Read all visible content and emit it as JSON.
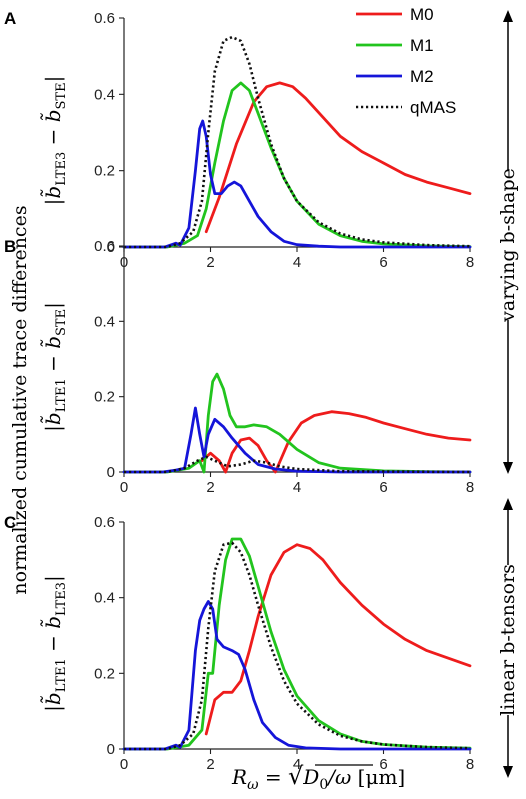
{
  "figure": {
    "shared_ylabel": "normalized cumulative trace differences",
    "shared_xlabel": "Rω = √(D0/ω) [μm]",
    "xlabel_parts": {
      "lhs_main": "R",
      "lhs_sub": "ω",
      "eq": " = ",
      "root": "√",
      "num_main": "D",
      "num_sub": "0",
      "slash": "/ω",
      "unit": " [μm]"
    },
    "side_annotations": [
      {
        "text": "varying b-shape",
        "arrow": "double-headed",
        "spans": [
          "A",
          "B"
        ]
      },
      {
        "text": "linear b-tensors",
        "arrow": "double-headed",
        "spans": [
          "C"
        ]
      }
    ]
  },
  "legend": {
    "placement": "top-right",
    "entries": [
      {
        "label": "M0",
        "color": "#ee1c1c",
        "style": "solid"
      },
      {
        "label": "M1",
        "color": "#22c41e",
        "style": "solid"
      },
      {
        "label": "M2",
        "color": "#1515d9",
        "style": "solid"
      },
      {
        "label": "qMAS",
        "color": "#111111",
        "style": "dotted"
      }
    ]
  },
  "chart_data": [
    {
      "panel": "A",
      "type": "line",
      "ylabel": "|b̃LTE3 − b̃STE|",
      "ylabel_parts": {
        "a_sub": "LTE3",
        "b_sub": "STE"
      },
      "xlim": [
        0,
        8
      ],
      "ylim": [
        0,
        0.6
      ],
      "xticks": [
        "0",
        "2",
        "4",
        "6",
        "8"
      ],
      "yticks": [
        "0",
        "0.2",
        "0.4",
        "0.6"
      ],
      "series": [
        {
          "name": "M0",
          "color": "#ee1c1c",
          "dash": "solid",
          "x": [
            1.9,
            2.2,
            2.6,
            3.0,
            3.3,
            3.6,
            3.9,
            4.2,
            4.6,
            5.0,
            5.5,
            6.0,
            6.5,
            7.0,
            7.5,
            8.0
          ],
          "y": [
            0.04,
            0.13,
            0.27,
            0.38,
            0.42,
            0.43,
            0.42,
            0.39,
            0.34,
            0.29,
            0.25,
            0.22,
            0.19,
            0.17,
            0.155,
            0.14
          ]
        },
        {
          "name": "M1",
          "color": "#22c41e",
          "dash": "solid",
          "x": [
            0,
            1.0,
            1.4,
            1.7,
            1.9,
            2.1,
            2.3,
            2.5,
            2.7,
            2.9,
            3.1,
            3.4,
            3.7,
            4.0,
            4.5,
            5.0,
            5.5,
            6.0,
            7.0,
            8.0
          ],
          "y": [
            0,
            0,
            0.01,
            0.03,
            0.1,
            0.22,
            0.33,
            0.41,
            0.43,
            0.41,
            0.35,
            0.26,
            0.18,
            0.12,
            0.06,
            0.03,
            0.015,
            0.008,
            0.003,
            0.001
          ]
        },
        {
          "name": "M2",
          "color": "#1515d9",
          "dash": "solid",
          "x": [
            0,
            0.95,
            1.2,
            1.3,
            1.5,
            1.65,
            1.75,
            1.82,
            1.9,
            2.0,
            2.1,
            2.25,
            2.4,
            2.55,
            2.7,
            2.9,
            3.1,
            3.4,
            3.7,
            4.0,
            4.5,
            5.0,
            8.0
          ],
          "y": [
            0,
            0,
            0.01,
            0.005,
            0.05,
            0.2,
            0.31,
            0.33,
            0.29,
            0.19,
            0.14,
            0.14,
            0.16,
            0.17,
            0.16,
            0.12,
            0.08,
            0.04,
            0.015,
            0.006,
            0.002,
            0,
            0
          ]
        },
        {
          "name": "qMAS",
          "color": "#111111",
          "dash": "dotted",
          "x": [
            0,
            1.0,
            1.3,
            1.6,
            1.8,
            1.95,
            2.1,
            2.3,
            2.5,
            2.7,
            2.9,
            3.1,
            3.4,
            3.7,
            4.0,
            4.5,
            5.0,
            5.5,
            6.0,
            7.0,
            8.0
          ],
          "y": [
            0,
            0,
            0.01,
            0.04,
            0.12,
            0.3,
            0.46,
            0.54,
            0.55,
            0.54,
            0.48,
            0.39,
            0.27,
            0.18,
            0.12,
            0.065,
            0.035,
            0.02,
            0.012,
            0.005,
            0.002
          ]
        }
      ]
    },
    {
      "panel": "B",
      "type": "line",
      "ylabel": "|b̃LTE1 − b̃STE|",
      "ylabel_parts": {
        "a_sub": "LTE1",
        "b_sub": "STE"
      },
      "xlim": [
        0,
        8
      ],
      "ylim": [
        0,
        0.6
      ],
      "xticks": [
        "0",
        "2",
        "4",
        "6",
        "8"
      ],
      "yticks": [
        "0",
        "0.2",
        "0.4",
        "0.6"
      ],
      "series": [
        {
          "name": "M0",
          "color": "#ee1c1c",
          "dash": "solid",
          "x": [
            1.8,
            2.0,
            2.2,
            2.35,
            2.5,
            2.7,
            2.9,
            3.1,
            3.3,
            3.5,
            3.8,
            4.1,
            4.4,
            4.8,
            5.2,
            5.6,
            6.0,
            6.5,
            7.0,
            7.5,
            8.0
          ],
          "y": [
            0.03,
            0.05,
            0.03,
            0.0,
            0.05,
            0.085,
            0.09,
            0.07,
            0.03,
            0.0,
            0.08,
            0.13,
            0.15,
            0.16,
            0.155,
            0.145,
            0.13,
            0.115,
            0.1,
            0.09,
            0.085
          ]
        },
        {
          "name": "M1",
          "color": "#22c41e",
          "dash": "solid",
          "x": [
            0,
            1.0,
            1.5,
            1.75,
            1.85,
            1.95,
            2.05,
            2.15,
            2.3,
            2.45,
            2.6,
            2.8,
            3.0,
            3.3,
            3.6,
            4.0,
            4.5,
            5.0,
            6.0,
            7.0,
            8.0
          ],
          "y": [
            0,
            0,
            0.01,
            0.03,
            0.0,
            0.15,
            0.24,
            0.26,
            0.22,
            0.15,
            0.12,
            0.12,
            0.125,
            0.12,
            0.1,
            0.06,
            0.025,
            0.01,
            0.003,
            0.001,
            0.0
          ]
        },
        {
          "name": "M2",
          "color": "#1515d9",
          "dash": "solid",
          "x": [
            0,
            0.9,
            1.2,
            1.4,
            1.55,
            1.65,
            1.75,
            1.85,
            1.95,
            2.1,
            2.3,
            2.5,
            2.8,
            3.1,
            3.5,
            4.0,
            5.0,
            8.0
          ],
          "y": [
            0,
            0,
            0.005,
            0.01,
            0.1,
            0.17,
            0.1,
            0.04,
            0.1,
            0.14,
            0.12,
            0.09,
            0.05,
            0.02,
            0.008,
            0.002,
            0.0,
            0.0
          ]
        },
        {
          "name": "qMAS",
          "color": "#111111",
          "dash": "dotted",
          "x": [
            0,
            1.0,
            1.4,
            1.7,
            1.9,
            2.1,
            2.4,
            2.7,
            3.0,
            3.3,
            3.6,
            4.0,
            5.0,
            8.0
          ],
          "y": [
            0,
            0,
            0.01,
            0.03,
            0.04,
            0.03,
            0.015,
            0.02,
            0.03,
            0.025,
            0.015,
            0.008,
            0.002,
            0.0
          ]
        }
      ]
    },
    {
      "panel": "C",
      "type": "line",
      "ylabel": "|b̃LTE1 − b̃LTE3|",
      "ylabel_parts": {
        "a_sub": "LTE1",
        "b_sub": "LTE3"
      },
      "xlim": [
        0,
        8
      ],
      "ylim": [
        0,
        0.6
      ],
      "xticks": [
        "0",
        "2",
        "4",
        "6",
        "8"
      ],
      "yticks": [
        "0",
        "0.2",
        "0.4",
        "0.6"
      ],
      "series": [
        {
          "name": "M0",
          "color": "#ee1c1c",
          "dash": "solid",
          "x": [
            1.9,
            2.1,
            2.3,
            2.5,
            2.7,
            2.9,
            3.1,
            3.4,
            3.7,
            4.0,
            4.3,
            4.6,
            5.0,
            5.5,
            6.0,
            6.5,
            7.0,
            7.5,
            8.0
          ],
          "y": [
            0.04,
            0.13,
            0.15,
            0.15,
            0.18,
            0.26,
            0.35,
            0.46,
            0.52,
            0.54,
            0.53,
            0.5,
            0.44,
            0.38,
            0.33,
            0.29,
            0.26,
            0.24,
            0.22
          ]
        },
        {
          "name": "M1",
          "color": "#22c41e",
          "dash": "solid",
          "x": [
            0,
            1.0,
            1.5,
            1.8,
            1.95,
            2.05,
            2.2,
            2.35,
            2.5,
            2.7,
            2.9,
            3.1,
            3.4,
            3.7,
            4.0,
            4.5,
            5.0,
            5.5,
            6.0,
            7.0,
            8.0
          ],
          "y": [
            0,
            0,
            0.01,
            0.05,
            0.2,
            0.2,
            0.38,
            0.5,
            0.555,
            0.555,
            0.51,
            0.43,
            0.31,
            0.21,
            0.14,
            0.075,
            0.04,
            0.02,
            0.012,
            0.005,
            0.002
          ]
        },
        {
          "name": "M2",
          "color": "#1515d9",
          "dash": "solid",
          "x": [
            0,
            0.95,
            1.2,
            1.3,
            1.5,
            1.65,
            1.75,
            1.85,
            1.95,
            2.05,
            2.15,
            2.3,
            2.5,
            2.65,
            2.8,
            3.0,
            3.2,
            3.5,
            3.8,
            4.2,
            5.0,
            8.0
          ],
          "y": [
            0,
            0,
            0.01,
            0.005,
            0.05,
            0.26,
            0.34,
            0.37,
            0.39,
            0.37,
            0.29,
            0.27,
            0.26,
            0.25,
            0.21,
            0.13,
            0.07,
            0.03,
            0.01,
            0.003,
            0.0,
            0.0
          ]
        },
        {
          "name": "qMAS",
          "color": "#111111",
          "dash": "dotted",
          "x": [
            0,
            1.0,
            1.3,
            1.6,
            1.8,
            1.95,
            2.1,
            2.3,
            2.5,
            2.7,
            2.9,
            3.1,
            3.4,
            3.7,
            4.0,
            4.5,
            5.0,
            5.5,
            6.0,
            7.0,
            8.0
          ],
          "y": [
            0,
            0,
            0.01,
            0.04,
            0.13,
            0.32,
            0.47,
            0.54,
            0.545,
            0.52,
            0.46,
            0.38,
            0.27,
            0.18,
            0.12,
            0.065,
            0.035,
            0.02,
            0.012,
            0.005,
            0.002
          ]
        }
      ]
    }
  ]
}
